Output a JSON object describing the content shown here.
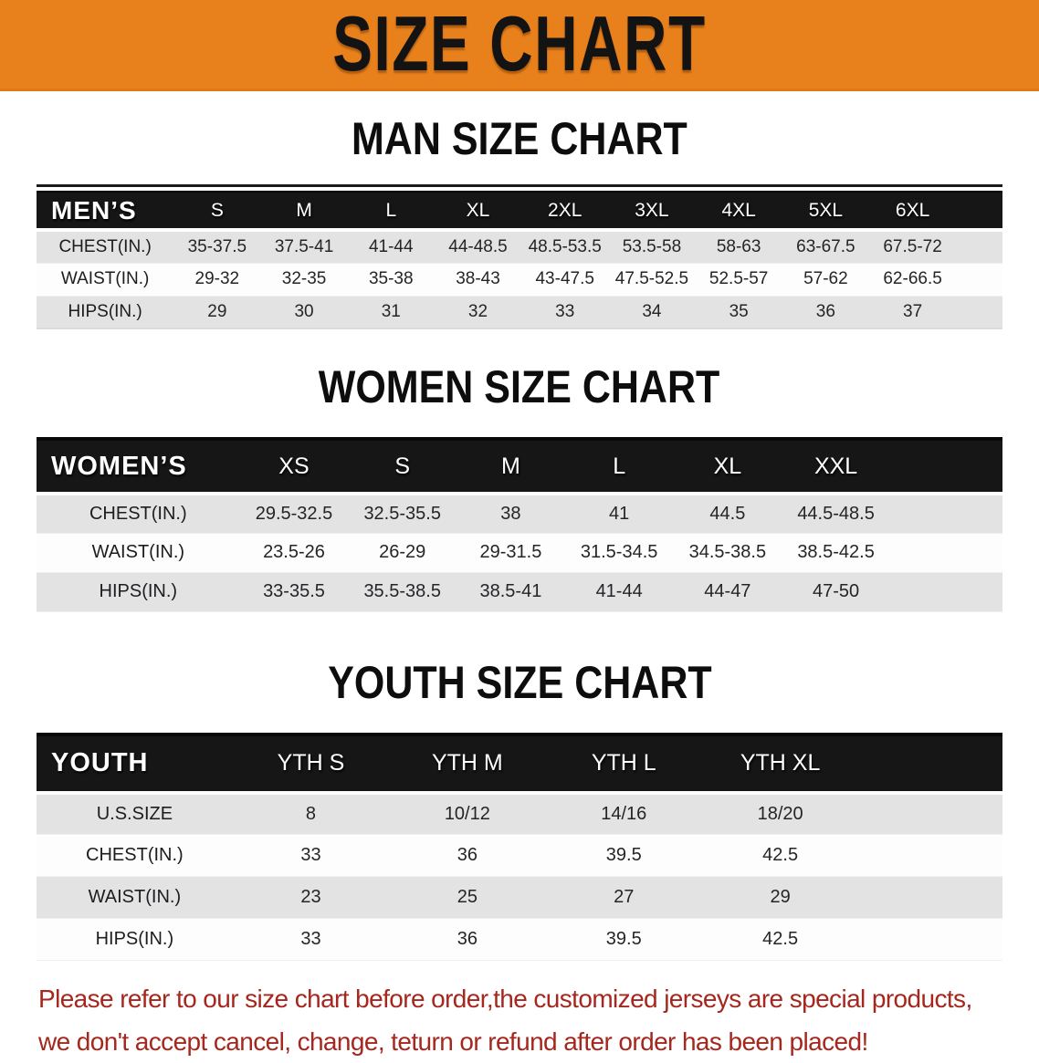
{
  "banner": {
    "title": "SIZE CHART",
    "bg_color": "#e8811c",
    "text_color": "#131313"
  },
  "colors": {
    "header_bar": "#161616",
    "row_alt": "#e3e3e4",
    "footer_text": "#a5271e"
  },
  "sections": [
    {
      "heading": "MAN SIZE CHART",
      "table": {
        "label": "MEN’S",
        "columns": [
          "S",
          "M",
          "L",
          "XL",
          "2XL",
          "3XL",
          "4XL",
          "5XL",
          "6XL"
        ],
        "rows": [
          {
            "label": "CHEST(IN.)",
            "values": [
              "35-37.5",
              "37.5-41",
              "41-44",
              "44-48.5",
              "48.5-53.5",
              "53.5-58",
              "58-63",
              "63-67.5",
              "67.5-72"
            ]
          },
          {
            "label": "WAIST(IN.)",
            "values": [
              "29-32",
              "32-35",
              "35-38",
              "38-43",
              "43-47.5",
              "47.5-52.5",
              "52.5-57",
              "57-62",
              "62-66.5"
            ]
          },
          {
            "label": "HIPS(IN.)",
            "values": [
              "29",
              "30",
              "31",
              "32",
              "33",
              "34",
              "35",
              "36",
              "37"
            ]
          }
        ]
      }
    },
    {
      "heading": "WOMEN SIZE CHART",
      "table": {
        "label": "WOMEN’S",
        "columns": [
          "XS",
          "S",
          "M",
          "L",
          "XL",
          "XXL"
        ],
        "rows": [
          {
            "label": "CHEST(IN.)",
            "values": [
              "29.5-32.5",
              "32.5-35.5",
              "38",
              "41",
              "44.5",
              "44.5-48.5"
            ]
          },
          {
            "label": "WAIST(IN.)",
            "values": [
              "23.5-26",
              "26-29",
              "29-31.5",
              "31.5-34.5",
              "34.5-38.5",
              "38.5-42.5"
            ]
          },
          {
            "label": "HIPS(IN.)",
            "values": [
              "33-35.5",
              "35.5-38.5",
              "38.5-41",
              "41-44",
              "44-47",
              "47-50"
            ]
          }
        ]
      }
    },
    {
      "heading": "YOUTH SIZE CHART",
      "table": {
        "label": "YOUTH",
        "columns": [
          "YTH S",
          "YTH M",
          "YTH L",
          "YTH XL"
        ],
        "rows": [
          {
            "label": "U.S.SIZE",
            "values": [
              "8",
              "10/12",
              "14/16",
              "18/20"
            ]
          },
          {
            "label": "CHEST(IN.)",
            "values": [
              "33",
              "36",
              "39.5",
              "42.5"
            ]
          },
          {
            "label": "WAIST(IN.)",
            "values": [
              "23",
              "25",
              "27",
              "29"
            ]
          },
          {
            "label": "HIPS(IN.)",
            "values": [
              "33",
              "36",
              "39.5",
              "42.5"
            ]
          }
        ]
      }
    }
  ],
  "footer": {
    "lines": [
      "Please refer to our size chart before order,the customized jerseys are special products,",
      "we don't accept cancel, change, teturn or refund after order has been placed!"
    ]
  }
}
